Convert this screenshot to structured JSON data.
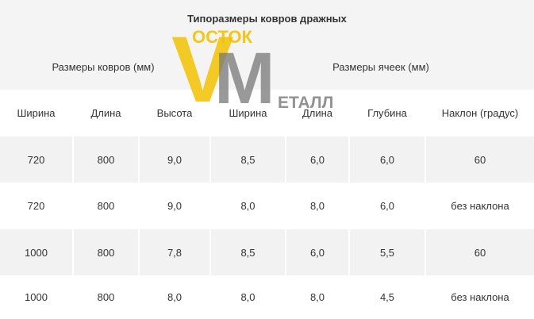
{
  "title": "Типоразмеры ковров дражных",
  "groups": [
    "Размеры ковров (мм)",
    "Размеры ячеек (мм)"
  ],
  "logo": {
    "v": "V",
    "m": "M",
    "top": "ОСТОК",
    "bottom": "ЕТАЛЛ"
  },
  "table": {
    "columns": [
      "Ширина",
      "Длина",
      "Высота",
      "Ширина",
      "Длина",
      "Глубина",
      "Наклон (градус)"
    ],
    "rows": [
      [
        "720",
        "800",
        "9,0",
        "8,5",
        "6,0",
        "6,0",
        "60"
      ],
      [
        "720",
        "800",
        "9,0",
        "8,0",
        "8,0",
        "6,0",
        "без наклона"
      ],
      [
        "1000",
        "800",
        "7,8",
        "8,5",
        "6,0",
        "5,5",
        "60"
      ],
      [
        "1000",
        "800",
        "8,0",
        "8,0",
        "8,0",
        "4,5",
        "без наклона"
      ]
    ]
  }
}
